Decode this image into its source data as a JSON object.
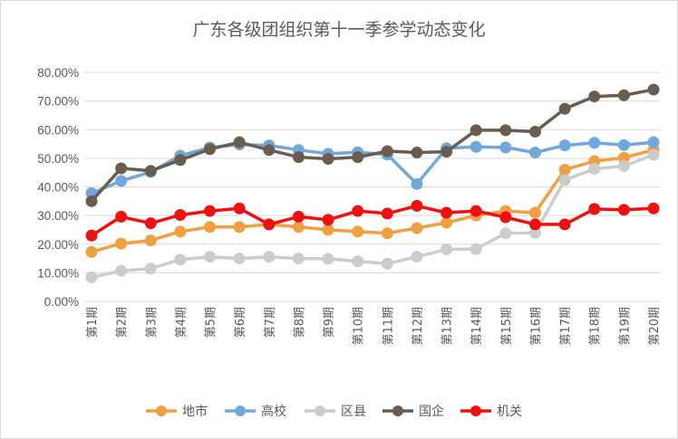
{
  "chart_data": {
    "type": "line",
    "title": "广东各级团组织第十一季参学动态变化",
    "categories": [
      "第1期",
      "第2期",
      "第3期",
      "第4期",
      "第5期",
      "第6期",
      "第7期",
      "第8期",
      "第9期",
      "第10期",
      "第11期",
      "第12期",
      "第13期",
      "第14期",
      "第15期",
      "第16期",
      "第17期",
      "第18期",
      "第19期",
      "第20期"
    ],
    "ylim": [
      0,
      80
    ],
    "yticks": [
      "0.00%",
      "10.00%",
      "20.00%",
      "30.00%",
      "40.00%",
      "50.00%",
      "60.00%",
      "70.00%",
      "80.00%"
    ],
    "grid": true,
    "legend_position": "bottom",
    "series": [
      {
        "name": "地市",
        "color": "#f0a040",
        "values": [
          17.3,
          20.2,
          21.3,
          24.4,
          26.0,
          26.0,
          26.9,
          26.0,
          25.0,
          24.4,
          23.8,
          25.6,
          27.5,
          30.0,
          31.6,
          31.0,
          46.0,
          49.0,
          50.2,
          52.9
        ]
      },
      {
        "name": "高校",
        "color": "#70a8dc",
        "values": [
          37.8,
          42.1,
          45.2,
          50.9,
          53.8,
          54.8,
          54.5,
          52.9,
          51.6,
          52.1,
          51.3,
          41.0,
          53.5,
          54.0,
          53.8,
          52.0,
          54.5,
          55.4,
          54.6,
          55.6
        ]
      },
      {
        "name": "区县",
        "color": "#cccccc",
        "values": [
          8.4,
          10.7,
          11.5,
          14.6,
          15.6,
          15.0,
          15.6,
          15.0,
          14.9,
          14.0,
          13.2,
          15.6,
          18.2,
          18.3,
          23.8,
          24.0,
          42.4,
          46.3,
          47.3,
          51.2
        ]
      },
      {
        "name": "国企",
        "color": "#6a5d50",
        "values": [
          35.0,
          46.5,
          45.6,
          49.4,
          53.2,
          55.6,
          52.9,
          50.4,
          49.8,
          50.4,
          52.5,
          52.0,
          52.3,
          59.8,
          59.8,
          59.3,
          67.3,
          71.6,
          72.0,
          74.0
        ]
      },
      {
        "name": "机关",
        "color": "#ee1111",
        "values": [
          23.0,
          29.6,
          27.3,
          30.2,
          31.6,
          32.5,
          26.9,
          29.6,
          28.5,
          31.6,
          30.7,
          33.4,
          31.0,
          31.6,
          29.4,
          26.9,
          26.9,
          32.3,
          32.0,
          32.5
        ]
      }
    ]
  }
}
